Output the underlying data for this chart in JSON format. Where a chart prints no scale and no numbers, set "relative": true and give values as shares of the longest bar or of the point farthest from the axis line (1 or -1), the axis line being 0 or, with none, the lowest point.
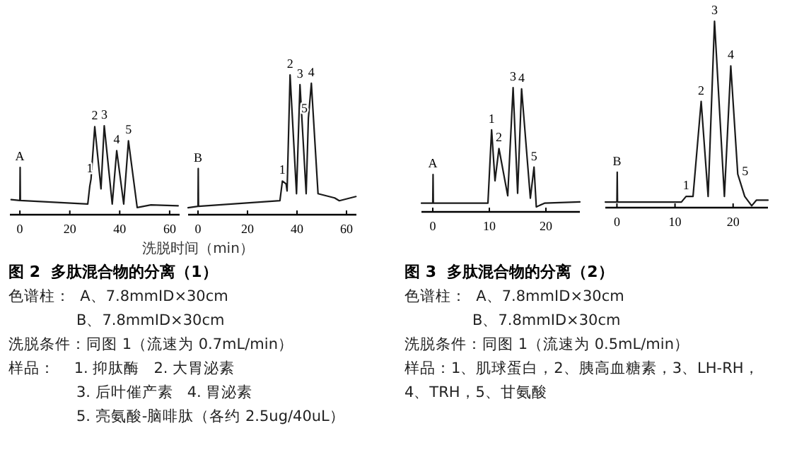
{
  "chart_data": [
    {
      "type": "line",
      "relative": true,
      "xlim": [
        -4,
        64
      ],
      "xticks": [
        0,
        20,
        40,
        60
      ],
      "series": [
        {
          "color": "#1a1a1a",
          "x": [
            -3.5,
            0,
            0.1,
            0.2,
            27.2,
            28,
            28.5,
            30,
            32.5,
            33.8,
            37,
            38.8,
            41.6,
            43.5,
            47,
            52.5,
            63.4
          ],
          "values": [
            0.17,
            0.16,
            0.53,
            0.16,
            0.12,
            0.32,
            0.4,
            0.99,
            0.29,
            1,
            0.12,
            0.72,
            0.12,
            0.83,
            0.08,
            0.11,
            0.1
          ]
        }
      ],
      "annotations": [
        {
          "text": "A",
          "x": 0,
          "y": 0.53
        },
        {
          "text": "1",
          "x": 28,
          "y": 0.4
        },
        {
          "text": "2",
          "x": 30,
          "y": 0.99
        },
        {
          "text": "3",
          "x": 33.8,
          "y": 1
        },
        {
          "text": "4",
          "x": 38.8,
          "y": 0.72
        },
        {
          "text": "5",
          "x": 43.5,
          "y": 0.83
        }
      ]
    },
    {
      "type": "line",
      "relative": true,
      "xlim": [
        -4,
        64
      ],
      "xticks": [
        0,
        20,
        40,
        60
      ],
      "xlabel": "洗脱时间（min）",
      "series": [
        {
          "color": "#1a1a1a",
          "x": [
            -4,
            0,
            0.1,
            0.2,
            33.1,
            34.1,
            35.6,
            36,
            37.2,
            39.8,
            41.2,
            43.7,
            44.6,
            45.8,
            48.5,
            55.2,
            57.1,
            63.8
          ],
          "values": [
            0.05,
            0.06,
            0.33,
            0.06,
            0.1,
            0.24,
            0.22,
            0.17,
            1,
            0.15,
            0.93,
            0.15,
            0.69,
            0.94,
            0.15,
            0.12,
            0.1,
            0.13
          ]
        }
      ],
      "annotations": [
        {
          "text": "B",
          "x": 0,
          "y": 0.33
        },
        {
          "text": "1",
          "x": 34.1,
          "y": 0.24
        },
        {
          "text": "2",
          "x": 37.2,
          "y": 1
        },
        {
          "text": "3",
          "x": 41.2,
          "y": 0.93
        },
        {
          "text": "5",
          "x": 44.6,
          "y": 0.69
        },
        {
          "text": "4",
          "x": 45.8,
          "y": 0.94
        }
      ]
    },
    {
      "type": "line",
      "relative": true,
      "xlim": [
        -2,
        26
      ],
      "xticks": [
        0,
        10,
        20
      ],
      "series": [
        {
          "color": "#1a1a1a",
          "x": [
            -2,
            0,
            0.05,
            0.1,
            9.75,
            10.4,
            11,
            11.7,
            13.25,
            14.2,
            15,
            15.7,
            17.25,
            17.9,
            18.3,
            19.75,
            26
          ],
          "values": [
            0.07,
            0.07,
            0.3,
            0.07,
            0.07,
            0.66,
            0.25,
            0.51,
            0.13,
            1,
            0.15,
            0.99,
            0.11,
            0.36,
            0.04,
            0.07,
            0.08
          ]
        }
      ],
      "annotations": [
        {
          "text": "A",
          "x": 0,
          "y": 0.3
        },
        {
          "text": "1",
          "x": 10.4,
          "y": 0.66
        },
        {
          "text": "2",
          "x": 11.7,
          "y": 0.51
        },
        {
          "text": "3",
          "x": 14.2,
          "y": 1
        },
        {
          "text": "4",
          "x": 15.7,
          "y": 0.99
        },
        {
          "text": "5",
          "x": 17.9,
          "y": 0.36
        }
      ]
    },
    {
      "type": "line",
      "relative": true,
      "xlim": [
        -2,
        26
      ],
      "xticks": [
        0,
        10,
        20
      ],
      "series": [
        {
          "color": "#1a1a1a",
          "x": [
            -2,
            0,
            0.05,
            0.1,
            11.1,
            11.9,
            13.1,
            14.5,
            15.7,
            16.8,
            18.5,
            19.6,
            20.8,
            22,
            23.2,
            24,
            26
          ],
          "values": [
            0.03,
            0.03,
            0.19,
            0.03,
            0.03,
            0.06,
            0.06,
            0.57,
            0.06,
            1,
            0.06,
            0.76,
            0.18,
            0.06,
            0.01,
            0.04,
            0.04
          ]
        }
      ],
      "annotations": [
        {
          "text": "B",
          "x": 0,
          "y": 0.19
        },
        {
          "text": "1",
          "x": 11.9,
          "y": 0.06
        },
        {
          "text": "2",
          "x": 14.5,
          "y": 0.57
        },
        {
          "text": "3",
          "x": 16.8,
          "y": 1
        },
        {
          "text": "4",
          "x": 19.6,
          "y": 0.76
        },
        {
          "text": "5",
          "x": 20.8,
          "y": 0.18
        }
      ]
    },
    {
      "type": "other",
      "title": "图 2  多肽混合物的分离（1）",
      "annotations": [
        "色谱柱：  A、7.8mmID×30cm",
        "B、7.8mmID×30cm",
        "洗脱条件：同图 1（流速为 0.7mL/min）",
        "样品：    1. 抑肽酶   2. 大胃泌素",
        "3. 后叶催产素   4. 胃泌素",
        "5. 亮氨酸-脑啡肽（各约 2.5ug/40uL）"
      ]
    },
    {
      "type": "other",
      "title": "图 3  多肽混合物的分离（2）",
      "annotations": [
        "色谱柱：  A、7.8mmID×30cm",
        "B、7.8mmID×30cm",
        "洗脱条件：同图 1（流速为 0.5mL/min）",
        "样品：1、肌球蛋白，2、胰高血糖素，3、LH-RH，",
        "4、TRH，5、甘氨酸"
      ]
    }
  ]
}
